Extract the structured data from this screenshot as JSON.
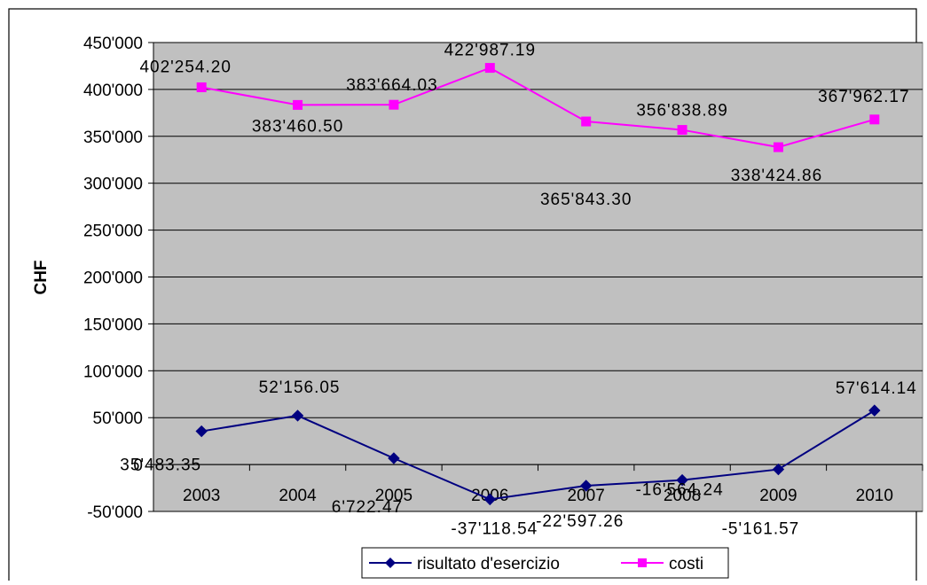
{
  "chart_data": {
    "type": "line",
    "ylabel": "CHF",
    "ylim": [
      -50000,
      450000
    ],
    "y_ticks": [
      -50000,
      0,
      50000,
      100000,
      150000,
      200000,
      250000,
      300000,
      350000,
      400000,
      450000
    ],
    "y_tick_labels": [
      "-50'000",
      "0",
      "50'000",
      "100'000",
      "150'000",
      "200'000",
      "250'000",
      "300'000",
      "350'000",
      "400'000",
      "450'000"
    ],
    "categories": [
      "2003",
      "2004",
      "2005",
      "2006",
      "2007",
      "2008",
      "2009",
      "2010"
    ],
    "grid": "horizontal",
    "legend_position": "bottom",
    "series": [
      {
        "name": "risultato d'esercizio",
        "color": "#000080",
        "marker": "diamond",
        "values": [
          35483.35,
          52156.05,
          6722.47,
          -37118.54,
          -22597.26,
          -16564.24,
          -5161.57,
          57614.14
        ],
        "labels": [
          "35'483.35",
          "52'156.05",
          "6'722.47",
          "-37'118.54",
          "-22'597.26",
          "-16'564.24",
          "-5'161.57",
          "57'614.14"
        ]
      },
      {
        "name": "costi",
        "color": "#FF00FF",
        "marker": "square",
        "values": [
          402254.2,
          383460.5,
          383664.03,
          422987.19,
          365843.3,
          356838.89,
          338424.86,
          367962.17
        ],
        "labels": [
          "402'254.20",
          "383'460.50",
          "383'664.03",
          "422'987.19",
          "365'843.30",
          "356'838.89",
          "338'424.86",
          "367'962.17"
        ]
      }
    ]
  }
}
